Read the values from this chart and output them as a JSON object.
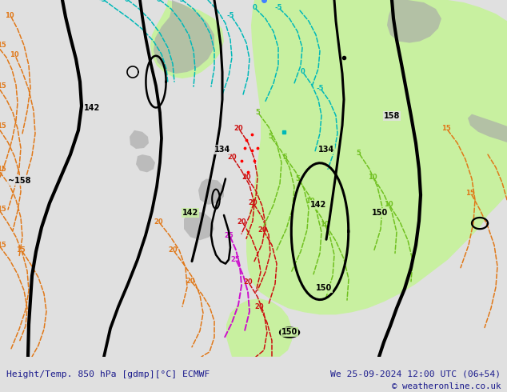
{
  "title_left": "Height/Temp. 850 hPa [gdmp][°C] ECMWF",
  "title_right": "We 25-09-2024 12:00 UTC (06+54)",
  "copyright": "© weatheronline.co.uk",
  "bg_color": "#e0e0e0",
  "green_light": "#c8f0a0",
  "green_fill": "#b0e880",
  "gray_fill": "#a8a8a8",
  "figsize": [
    6.34,
    4.9
  ],
  "dpi": 100,
  "black_lw": 2.2,
  "temp_lw": 1.1
}
